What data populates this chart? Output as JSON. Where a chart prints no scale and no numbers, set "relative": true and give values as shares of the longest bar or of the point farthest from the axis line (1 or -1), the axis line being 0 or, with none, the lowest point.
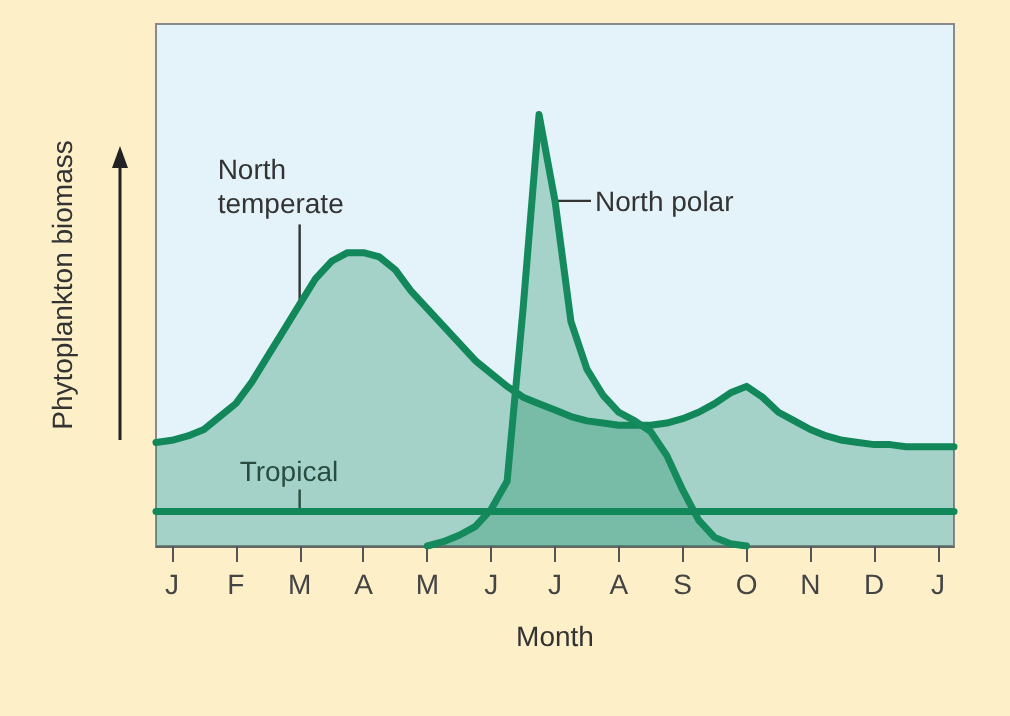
{
  "chart_data": {
    "type": "area",
    "relative": true,
    "xlabel": "Month",
    "ylabel": "Phytoplankton biomass",
    "categories": [
      null,
      "J",
      null,
      null,
      null,
      "F",
      null,
      null,
      null,
      "M",
      null,
      null,
      null,
      "A",
      null,
      null,
      null,
      "M",
      null,
      null,
      null,
      "J",
      null,
      null,
      null,
      "J",
      null,
      null,
      null,
      "A",
      null,
      null,
      null,
      "S",
      null,
      null,
      null,
      "O",
      null,
      null,
      null,
      "N",
      null,
      null,
      null,
      "D",
      null,
      null,
      null,
      "J",
      null
    ],
    "series": [
      {
        "name": "North temperate",
        "color": "#11875a",
        "values": [
          0.24,
          0.245,
          0.255,
          0.27,
          0.3,
          0.33,
          0.38,
          0.44,
          0.5,
          0.56,
          0.62,
          0.66,
          0.68,
          0.68,
          0.67,
          0.64,
          0.59,
          0.55,
          0.51,
          0.47,
          0.43,
          0.4,
          0.37,
          0.345,
          0.33,
          0.315,
          0.3,
          0.29,
          0.285,
          0.28,
          0.28,
          0.28,
          0.285,
          0.295,
          0.31,
          0.33,
          0.355,
          0.37,
          0.345,
          0.31,
          0.29,
          0.27,
          0.255,
          0.245,
          0.24,
          0.235,
          0.235,
          0.23,
          0.23,
          0.23,
          0.23
        ]
      },
      {
        "name": "North polar",
        "color": "#148a5d",
        "values": [
          null,
          null,
          null,
          null,
          null,
          null,
          null,
          null,
          null,
          null,
          null,
          null,
          null,
          null,
          null,
          null,
          null,
          0,
          0.01,
          0.025,
          0.045,
          0.085,
          0.15,
          0.55,
          1,
          0.8,
          0.52,
          0.41,
          0.35,
          0.31,
          0.29,
          0.265,
          0.21,
          0.13,
          0.06,
          0.02,
          0.005,
          0,
          null,
          null,
          null,
          null,
          null,
          null,
          null,
          null,
          null,
          null,
          null,
          null,
          null
        ]
      },
      {
        "name": "Tropical",
        "type": "line",
        "color": "#11875a",
        "values": [
          0.08,
          0.08,
          0.08,
          0.08,
          0.08,
          0.08,
          0.08,
          0.08,
          0.08,
          0.08,
          0.08,
          0.08,
          0.08,
          0.08,
          0.08,
          0.08,
          0.08,
          0.08,
          0.08,
          0.08,
          0.08,
          0.08,
          0.08,
          0.08,
          0.08,
          0.08,
          0.08,
          0.08,
          0.08,
          0.08,
          0.08,
          0.08,
          0.08,
          0.08,
          0.08,
          0.08,
          0.08,
          0.08,
          0.08,
          0.08,
          0.08,
          0.08,
          0.08,
          0.08,
          0.08,
          0.08,
          0.08,
          0.08,
          0.08,
          0.08,
          0.08
        ]
      }
    ]
  }
}
